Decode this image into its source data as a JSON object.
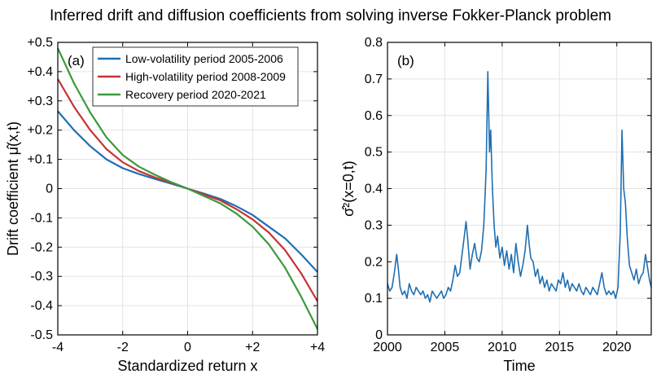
{
  "figure": {
    "title": "Inferred drift and diffusion coefficients from solving inverse Fokker-Planck problem"
  },
  "chart_data": [
    {
      "type": "line",
      "panel_label": "(a)",
      "xlabel": "Standardized return x",
      "ylabel": "Drift coefficient μ̂(x,t)",
      "xlim": [
        -4,
        4
      ],
      "ylim": [
        -0.5,
        0.5
      ],
      "xticks": [
        -4,
        -2,
        0,
        2,
        4
      ],
      "xtick_labels": [
        "-4",
        "-2",
        "0",
        "+2",
        "+4"
      ],
      "yticks": [
        0.5,
        0.4,
        0.3,
        0.2,
        0.1,
        0,
        -0.1,
        -0.2,
        -0.3,
        -0.4,
        -0.5
      ],
      "ytick_labels": [
        "+0.5",
        "+0.4",
        "+0.3",
        "+0.2",
        "+0.1",
        "0",
        "-0.1",
        "-0.2",
        "-0.3",
        "-0.4",
        "-0.5"
      ],
      "grid": true,
      "legend_position": "top-right",
      "series": [
        {
          "name": "Low-volatility period 2005-2006",
          "color": "#1f6fb2",
          "x": [
            -4,
            -3.5,
            -3,
            -2.5,
            -2,
            -1.5,
            -1,
            -0.5,
            0,
            0.5,
            1,
            1.5,
            2,
            2.5,
            3,
            3.5,
            4
          ],
          "y": [
            0.265,
            0.2,
            0.145,
            0.1,
            0.07,
            0.05,
            0.033,
            0.017,
            0,
            -0.017,
            -0.035,
            -0.06,
            -0.09,
            -0.13,
            -0.17,
            -0.225,
            -0.285
          ]
        },
        {
          "name": "High-volatility period 2008-2009",
          "color": "#c83232",
          "x": [
            -4,
            -3.5,
            -3,
            -2.5,
            -2,
            -1.5,
            -1,
            -0.5,
            0,
            0.5,
            1,
            1.5,
            2,
            2.5,
            3,
            3.5,
            4
          ],
          "y": [
            0.375,
            0.28,
            0.2,
            0.135,
            0.09,
            0.06,
            0.038,
            0.02,
            0,
            -0.02,
            -0.04,
            -0.07,
            -0.105,
            -0.15,
            -0.21,
            -0.29,
            -0.385
          ]
        },
        {
          "name": "Recovery period 2020-2021",
          "color": "#3a9a3a",
          "x": [
            -4,
            -3.5,
            -3,
            -2.5,
            -2,
            -1.5,
            -1,
            -0.5,
            0,
            0.5,
            1,
            1.5,
            2,
            2.5,
            3,
            3.5,
            4
          ],
          "y": [
            0.48,
            0.36,
            0.26,
            0.175,
            0.115,
            0.075,
            0.047,
            0.022,
            0,
            -0.025,
            -0.05,
            -0.085,
            -0.13,
            -0.19,
            -0.27,
            -0.37,
            -0.48
          ]
        }
      ]
    },
    {
      "type": "line",
      "panel_label": "(b)",
      "xlabel": "Time",
      "ylabel": "σ̂²(x=0,t)",
      "xlim": [
        2000,
        2023
      ],
      "ylim": [
        0,
        0.8
      ],
      "xticks": [
        2000,
        2005,
        2010,
        2015,
        2020
      ],
      "xtick_labels": [
        "2000",
        "2005",
        "2010",
        "2015",
        "2020"
      ],
      "yticks": [
        0,
        0.1,
        0.2,
        0.3,
        0.4,
        0.5,
        0.6,
        0.7,
        0.8
      ],
      "ytick_labels": [
        "0",
        "0.1",
        "0.2",
        "0.3",
        "0.4",
        "0.5",
        "0.6",
        "0.7",
        "0.8"
      ],
      "grid": true,
      "series": [
        {
          "color": "#1f6fb2",
          "x": [
            2000.0,
            2000.2,
            2000.4,
            2000.6,
            2000.8,
            2000.95,
            2001.1,
            2001.3,
            2001.5,
            2001.7,
            2001.9,
            2002.1,
            2002.3,
            2002.5,
            2002.7,
            2002.9,
            2003.1,
            2003.3,
            2003.5,
            2003.7,
            2003.9,
            2004.1,
            2004.3,
            2004.5,
            2004.7,
            2004.9,
            2005.1,
            2005.3,
            2005.5,
            2005.7,
            2005.9,
            2006.1,
            2006.3,
            2006.5,
            2006.7,
            2006.85,
            2007.0,
            2007.2,
            2007.4,
            2007.6,
            2007.8,
            2008.0,
            2008.2,
            2008.4,
            2008.6,
            2008.75,
            2008.9,
            2009.0,
            2009.15,
            2009.3,
            2009.45,
            2009.6,
            2009.8,
            2010.0,
            2010.2,
            2010.4,
            2010.6,
            2010.8,
            2011.0,
            2011.2,
            2011.4,
            2011.6,
            2011.8,
            2012.0,
            2012.2,
            2012.35,
            2012.5,
            2012.7,
            2012.9,
            2013.1,
            2013.3,
            2013.5,
            2013.7,
            2013.9,
            2014.1,
            2014.3,
            2014.5,
            2014.7,
            2014.9,
            2015.1,
            2015.3,
            2015.5,
            2015.7,
            2015.9,
            2016.1,
            2016.3,
            2016.5,
            2016.7,
            2016.9,
            2017.1,
            2017.3,
            2017.5,
            2017.7,
            2017.9,
            2018.1,
            2018.3,
            2018.5,
            2018.7,
            2018.9,
            2019.1,
            2019.3,
            2019.5,
            2019.7,
            2019.9,
            2020.1,
            2020.3,
            2020.45,
            2020.6,
            2020.75,
            2020.9,
            2021.1,
            2021.3,
            2021.5,
            2021.7,
            2021.9,
            2022.1,
            2022.3,
            2022.5,
            2022.7,
            2022.85,
            2023.0
          ],
          "y": [
            0.14,
            0.12,
            0.13,
            0.17,
            0.22,
            0.18,
            0.13,
            0.11,
            0.12,
            0.1,
            0.14,
            0.12,
            0.11,
            0.13,
            0.12,
            0.11,
            0.12,
            0.1,
            0.11,
            0.09,
            0.12,
            0.11,
            0.1,
            0.11,
            0.12,
            0.1,
            0.11,
            0.13,
            0.12,
            0.15,
            0.19,
            0.16,
            0.17,
            0.22,
            0.27,
            0.31,
            0.26,
            0.18,
            0.22,
            0.25,
            0.21,
            0.2,
            0.23,
            0.3,
            0.45,
            0.72,
            0.5,
            0.56,
            0.4,
            0.3,
            0.24,
            0.27,
            0.21,
            0.24,
            0.19,
            0.23,
            0.18,
            0.22,
            0.17,
            0.25,
            0.2,
            0.16,
            0.19,
            0.23,
            0.3,
            0.25,
            0.21,
            0.2,
            0.16,
            0.18,
            0.14,
            0.16,
            0.13,
            0.15,
            0.12,
            0.14,
            0.13,
            0.12,
            0.15,
            0.14,
            0.17,
            0.13,
            0.15,
            0.12,
            0.14,
            0.13,
            0.12,
            0.14,
            0.12,
            0.11,
            0.13,
            0.12,
            0.11,
            0.13,
            0.12,
            0.11,
            0.14,
            0.17,
            0.13,
            0.11,
            0.12,
            0.11,
            0.12,
            0.1,
            0.13,
            0.28,
            0.56,
            0.4,
            0.36,
            0.27,
            0.19,
            0.17,
            0.15,
            0.18,
            0.14,
            0.16,
            0.17,
            0.22,
            0.18,
            0.15,
            0.13
          ]
        }
      ]
    }
  ]
}
